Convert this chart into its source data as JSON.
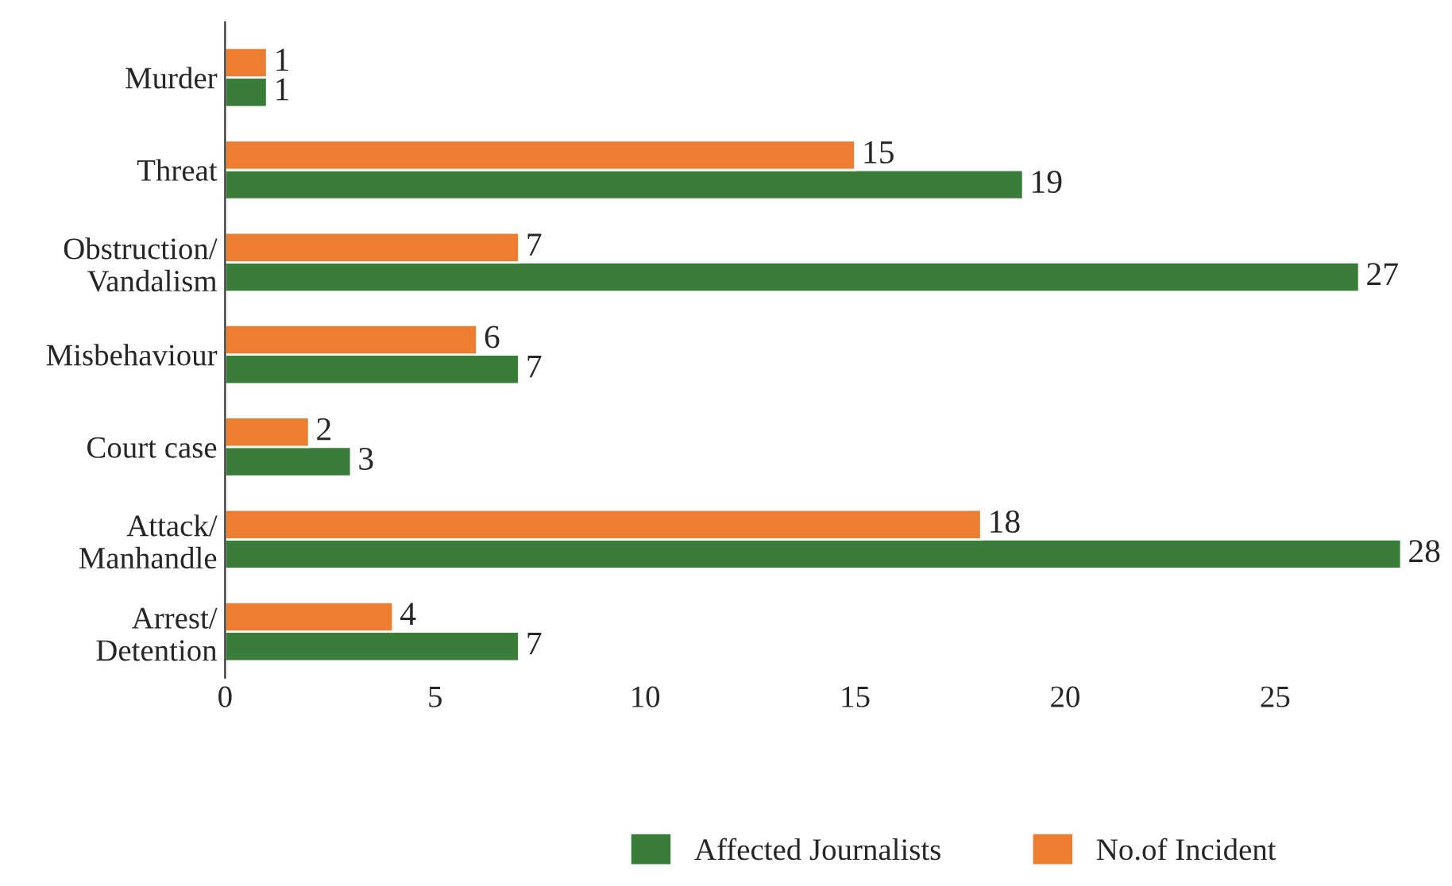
{
  "chart_data": {
    "type": "bar",
    "orientation": "horizontal",
    "categories": [
      "Murder",
      "Threat",
      "Obstruction/\nVandalism",
      "Misbehaviour",
      "Court case",
      "Attack/\nManhandle",
      "Arrest/\nDetention"
    ],
    "series": [
      {
        "name": "Affected Journalists",
        "color": "#3a7d3a",
        "values": [
          1,
          19,
          27,
          7,
          3,
          28,
          7
        ]
      },
      {
        "name": "No.of Incident",
        "color": "#ed7d31",
        "values": [
          1,
          15,
          7,
          6,
          2,
          18,
          4
        ]
      }
    ],
    "xlim": [
      0,
      28
    ],
    "xticks": [
      0,
      5,
      10,
      15,
      20,
      25
    ],
    "data_labels": true,
    "grid": false,
    "legend": "bottom"
  }
}
